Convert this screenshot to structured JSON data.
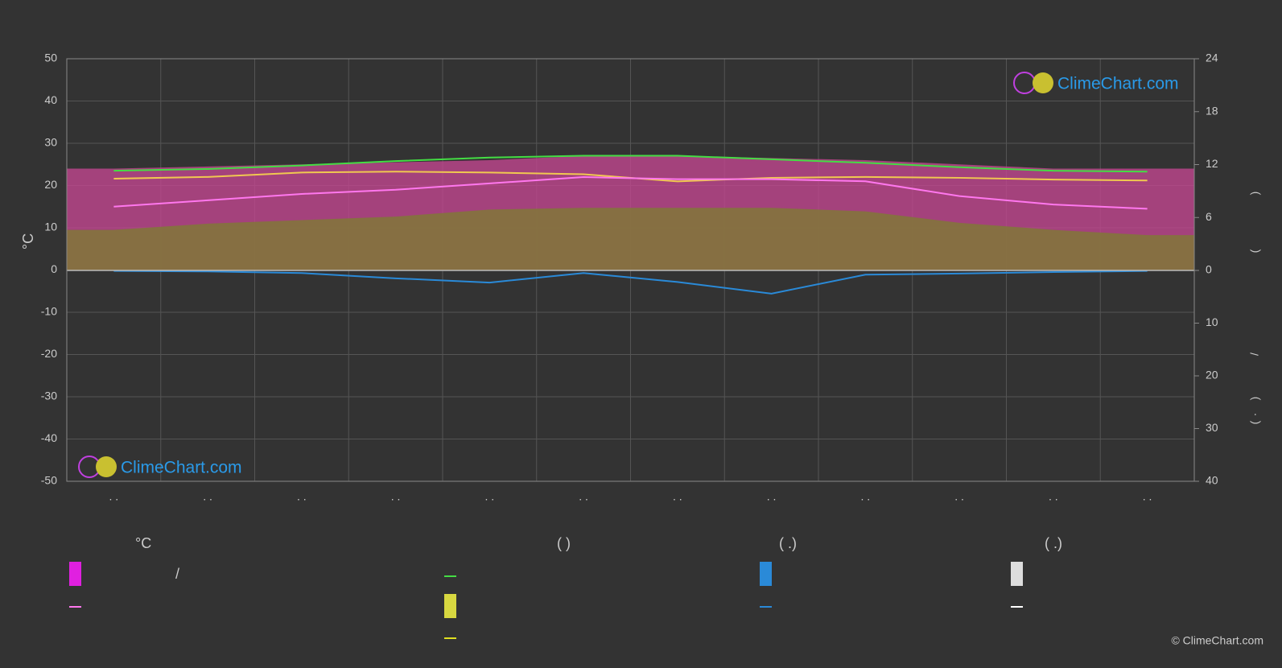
{
  "chart_data": {
    "type": "line",
    "categories": [
      ". .",
      ". .",
      ". .",
      ". .",
      ". .",
      ". .",
      ". .",
      ". .",
      ". .",
      ". .",
      ". .",
      ". ."
    ],
    "y_label": "°C",
    "ylim": [
      -50,
      50
    ],
    "yticks": [
      50,
      40,
      30,
      20,
      10,
      0,
      -10,
      -20,
      -30,
      -40,
      -50
    ],
    "y2lim": [
      0,
      24
    ],
    "y2ticks": [
      24,
      18,
      12,
      6,
      0
    ],
    "y3lim": [
      0,
      40
    ],
    "y3ticks": [
      10,
      20,
      30,
      40
    ],
    "right_axis_texts": [
      ")",
      "(",
      "/",
      ")",
      "·",
      "("
    ],
    "grid": true,
    "series": [
      {
        "color": "#c0468f",
        "axis": "y",
        "style": "area",
        "values": [
          24,
          24.5,
          25,
          25.5,
          26,
          27,
          27,
          26.5,
          26,
          25,
          24,
          24
        ]
      },
      {
        "color": "#7e7b33",
        "axis": "y2",
        "style": "area",
        "values": [
          4.6,
          5.3,
          5.7,
          6.1,
          6.9,
          7.1,
          7.1,
          7.1,
          6.7,
          5.4,
          4.6,
          4.0
        ]
      },
      {
        "color": "#44dd44",
        "axis": "y2",
        "style": "line",
        "values": [
          11.3,
          11.5,
          11.9,
          12.4,
          12.8,
          13.0,
          13.0,
          12.6,
          12.2,
          11.7,
          11.3,
          11.2
        ]
      },
      {
        "color": "#f0c850",
        "axis": "y2",
        "style": "line",
        "values": [
          10.4,
          10.6,
          11.1,
          11.2,
          11.1,
          10.9,
          10.1,
          10.5,
          10.6,
          10.5,
          10.3,
          10.2
        ]
      },
      {
        "color": "#ff77ee",
        "axis": "y",
        "style": "line",
        "values": [
          15,
          16.5,
          18,
          19,
          20.5,
          22,
          21.5,
          21.5,
          21,
          17.5,
          15.5,
          14.5
        ]
      },
      {
        "color": "#2a8ad8",
        "axis": "y3",
        "style": "line",
        "values": [
          0.1,
          0.2,
          0.5,
          1.5,
          2.3,
          0.5,
          2.2,
          4.4,
          0.8,
          0.6,
          0.3,
          0.1
        ]
      }
    ],
    "legend": {
      "headers": [
        "°C",
        "(          )",
        "(   .)",
        "(   .)"
      ],
      "marks": [
        "/"
      ]
    },
    "watermark": "ClimeChart.com",
    "copyright": "© ClimeChart.com"
  }
}
